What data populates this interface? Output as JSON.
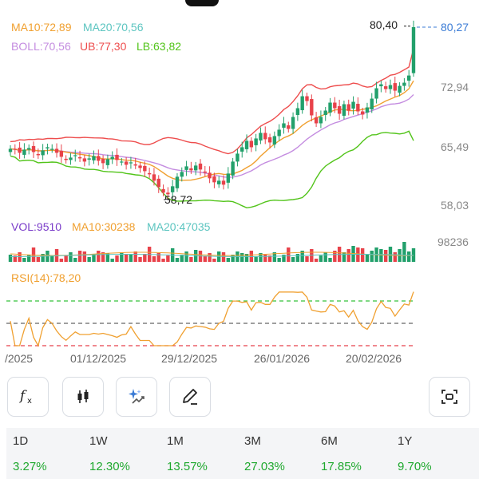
{
  "header": {
    "ma10": "MA10:72,89",
    "ma20": "MA20:70,56",
    "boll": "BOLL:70,56",
    "ub": "UB:77,30",
    "lb": "LB:63,82",
    "max_label": "80,40",
    "last_price_label": "80,27",
    "min_label": "58,72"
  },
  "volume_header": {
    "vol": "VOL:9510",
    "ma10": "MA10:30238",
    "ma20": "MA20:47035",
    "axis_max": "98236"
  },
  "rsi_header": {
    "rsi": "RSI(14):78,20"
  },
  "toolbar": {
    "buttons": [
      "formula-icon",
      "candlestick-icon",
      "ai-sparkle-icon",
      "pencil-icon",
      "screenshot-icon"
    ]
  },
  "performance": [
    {
      "period": "1D",
      "value": "3.27%"
    },
    {
      "period": "1W",
      "value": "12.30%"
    },
    {
      "period": "1M",
      "value": "13.57%"
    },
    {
      "period": "3M",
      "value": "27.03%"
    },
    {
      "period": "6M",
      "value": "17.85%"
    },
    {
      "period": "1Y",
      "value": "9.70%"
    }
  ],
  "colors": {
    "up": "#22a06b",
    "down": "#e8424a",
    "ma10": "#f0a030",
    "ma20": "#5cc5c0",
    "boll": "#c48ce0",
    "ub": "#ee4d4d",
    "lb": "#52c41a",
    "vol": "#7a3cc9",
    "rsi": "#f0a030",
    "price_link": "#3a7bd5",
    "positive": "#1fa82e"
  },
  "chart_data": {
    "type": "candlestick",
    "price_axis": {
      "ticks": [
        58.03,
        65.49,
        72.94,
        80.27
      ],
      "tick_labels": [
        "58,03",
        "65,49",
        "72,94",
        "80,27"
      ],
      "range": [
        56.5,
        81.5
      ]
    },
    "x_ticks": [
      "/2025",
      "01/12/2025",
      "29/12/2025",
      "26/01/2026",
      "20/02/2026"
    ],
    "close": [
      65.0,
      64.9,
      64.5,
      64.9,
      65.1,
      64.6,
      64.2,
      64.8,
      65.2,
      65.0,
      64.5,
      64.0,
      63.6,
      63.9,
      64.2,
      63.8,
      63.4,
      63.8,
      64.1,
      63.5,
      63.2,
      63.7,
      64.0,
      63.6,
      63.4,
      63.0,
      63.3,
      62.9,
      62.6,
      62.2,
      61.8,
      61.0,
      60.2,
      59.5,
      59.3,
      60.3,
      61.5,
      62.1,
      62.8,
      62.3,
      62.9,
      62.4,
      62.0,
      61.3,
      60.8,
      61.0,
      60.5,
      61.9,
      63.4,
      64.4,
      65.2,
      66.0,
      65.2,
      66.3,
      67.0,
      66.2,
      65.8,
      66.6,
      67.4,
      68.2,
      67.5,
      69.0,
      70.1,
      71.6,
      71.0,
      69.2,
      68.2,
      69.0,
      69.8,
      70.8,
      70.1,
      69.4,
      70.6,
      69.8,
      70.9,
      69.7,
      69.3,
      70.2,
      71.3,
      72.6,
      73.1,
      72.5,
      73.0,
      72.3,
      72.9,
      73.3,
      74.2,
      80.27
    ],
    "volume_axis": {
      "max": 98236
    },
    "rsi": {
      "value": 78.2,
      "levels": [
        70,
        50,
        30
      ]
    }
  }
}
